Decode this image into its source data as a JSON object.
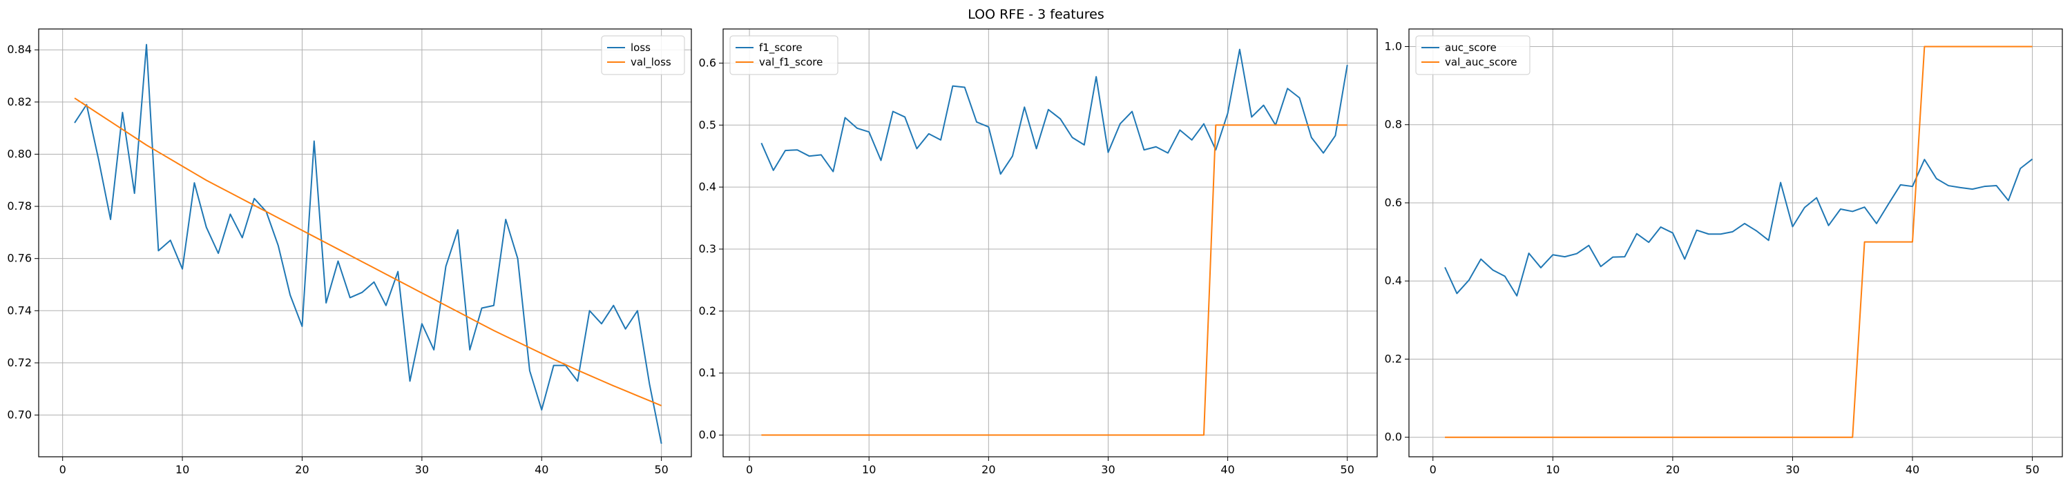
{
  "figure": {
    "suptitle": "LOO RFE - 3 features",
    "colors": {
      "series1": "#1f77b4",
      "series2": "#ff7f0e",
      "grid": "#b0b0b0",
      "axes": "#000000"
    }
  },
  "chart_data": [
    {
      "type": "line",
      "title": "",
      "xlabel": "",
      "ylabel": "",
      "xlim": [
        -2,
        52.5
      ],
      "ylim": [
        0.684,
        0.848
      ],
      "xticks": [
        0,
        10,
        20,
        30,
        40,
        50
      ],
      "xtick_labels": [
        "0",
        "10",
        "20",
        "30",
        "40",
        "50"
      ],
      "yticks": [
        0.7,
        0.72,
        0.74,
        0.76,
        0.78,
        0.8,
        0.82,
        0.84
      ],
      "ytick_labels": [
        "0.70",
        "0.72",
        "0.74",
        "0.76",
        "0.78",
        "0.80",
        "0.82",
        "0.84"
      ],
      "grid": true,
      "legend": "upper right",
      "x": [
        1,
        2,
        3,
        4,
        5,
        6,
        7,
        8,
        9,
        10,
        11,
        12,
        13,
        14,
        15,
        16,
        17,
        18,
        19,
        20,
        21,
        22,
        23,
        24,
        25,
        26,
        27,
        28,
        29,
        30,
        31,
        32,
        33,
        34,
        35,
        36,
        37,
        38,
        39,
        40,
        41,
        42,
        43,
        44,
        45,
        46,
        47,
        48,
        49,
        50
      ],
      "series": [
        {
          "name": "loss",
          "color": "#1f77b4",
          "values": [
            0.812,
            0.819,
            0.798,
            0.775,
            0.816,
            0.785,
            0.842,
            0.763,
            0.767,
            0.756,
            0.789,
            0.772,
            0.762,
            0.777,
            0.768,
            0.783,
            0.778,
            0.765,
            0.746,
            0.734,
            0.805,
            0.743,
            0.759,
            0.745,
            0.747,
            0.751,
            0.742,
            0.755,
            0.713,
            0.735,
            0.725,
            0.757,
            0.771,
            0.725,
            0.741,
            0.742,
            0.775,
            0.76,
            0.717,
            0.702,
            0.719,
            0.719,
            0.713,
            0.74,
            0.735,
            0.742,
            0.733,
            0.74,
            0.712,
            0.689
          ]
        },
        {
          "name": "val_loss",
          "color": "#ff7f0e",
          "values": [
            0.8215,
            0.8185,
            0.8155,
            0.8125,
            0.8095,
            0.8065,
            0.8035,
            0.8008,
            0.7981,
            0.7954,
            0.7927,
            0.79,
            0.7876,
            0.7852,
            0.7828,
            0.7804,
            0.778,
            0.7756,
            0.7732,
            0.7708,
            0.7684,
            0.766,
            0.7636,
            0.7612,
            0.7588,
            0.7564,
            0.754,
            0.7516,
            0.7492,
            0.7468,
            0.7444,
            0.742,
            0.7396,
            0.7372,
            0.7348,
            0.7324,
            0.7302,
            0.728,
            0.7258,
            0.7236,
            0.7214,
            0.7193,
            0.7172,
            0.7152,
            0.7132,
            0.7112,
            0.7093,
            0.7074,
            0.7055,
            0.7036
          ]
        }
      ]
    },
    {
      "type": "line",
      "title": "",
      "xlabel": "",
      "ylabel": "",
      "xlim": [
        -2.2,
        52.5
      ],
      "ylim": [
        -0.035,
        0.655
      ],
      "xticks": [
        0,
        10,
        20,
        30,
        40,
        50
      ],
      "xtick_labels": [
        "0",
        "10",
        "20",
        "30",
        "40",
        "50"
      ],
      "yticks": [
        0.0,
        0.1,
        0.2,
        0.3,
        0.4,
        0.5,
        0.6
      ],
      "ytick_labels": [
        "0.0",
        "0.1",
        "0.2",
        "0.3",
        "0.4",
        "0.5",
        "0.6"
      ],
      "grid": true,
      "legend": "upper left",
      "x": [
        1,
        2,
        3,
        4,
        5,
        6,
        7,
        8,
        9,
        10,
        11,
        12,
        13,
        14,
        15,
        16,
        17,
        18,
        19,
        20,
        21,
        22,
        23,
        24,
        25,
        26,
        27,
        28,
        29,
        30,
        31,
        32,
        33,
        34,
        35,
        36,
        37,
        38,
        39,
        40,
        41,
        42,
        43,
        44,
        45,
        46,
        47,
        48,
        49,
        50
      ],
      "series": [
        {
          "name": "f1_score",
          "color": "#1f77b4",
          "values": [
            0.471,
            0.427,
            0.459,
            0.46,
            0.45,
            0.452,
            0.425,
            0.512,
            0.495,
            0.489,
            0.443,
            0.522,
            0.513,
            0.462,
            0.486,
            0.476,
            0.563,
            0.561,
            0.505,
            0.497,
            0.421,
            0.45,
            0.529,
            0.462,
            0.525,
            0.51,
            0.48,
            0.468,
            0.578,
            0.456,
            0.502,
            0.522,
            0.46,
            0.465,
            0.455,
            0.492,
            0.476,
            0.502,
            0.46,
            0.519,
            0.622,
            0.513,
            0.532,
            0.5,
            0.559,
            0.544,
            0.48,
            0.455,
            0.483,
            0.597
          ]
        },
        {
          "name": "val_f1_score",
          "color": "#ff7f0e",
          "values": [
            0,
            0,
            0,
            0,
            0,
            0,
            0,
            0,
            0,
            0,
            0,
            0,
            0,
            0,
            0,
            0,
            0,
            0,
            0,
            0,
            0,
            0,
            0,
            0,
            0,
            0,
            0,
            0,
            0,
            0,
            0,
            0,
            0,
            0,
            0,
            0,
            0,
            0,
            0.5,
            0.5,
            0.5,
            0.5,
            0.5,
            0.5,
            0.5,
            0.5,
            0.5,
            0.5,
            0.5,
            0.5
          ]
        }
      ]
    },
    {
      "type": "line",
      "title": "",
      "xlabel": "",
      "ylabel": "",
      "xlim": [
        -2,
        52.5
      ],
      "ylim": [
        -0.05,
        1.045
      ],
      "xticks": [
        0,
        10,
        20,
        30,
        40,
        50
      ],
      "xtick_labels": [
        "0",
        "10",
        "20",
        "30",
        "40",
        "50"
      ],
      "yticks": [
        0.0,
        0.2,
        0.4,
        0.6,
        0.8,
        1.0
      ],
      "ytick_labels": [
        "0.0",
        "0.2",
        "0.4",
        "0.6",
        "0.8",
        "1.0"
      ],
      "grid": true,
      "legend": "upper left",
      "x": [
        1,
        2,
        3,
        4,
        5,
        6,
        7,
        8,
        9,
        10,
        11,
        12,
        13,
        14,
        15,
        16,
        17,
        18,
        19,
        20,
        21,
        22,
        23,
        24,
        25,
        26,
        27,
        28,
        29,
        30,
        31,
        32,
        33,
        34,
        35,
        36,
        37,
        38,
        39,
        40,
        41,
        42,
        43,
        44,
        45,
        46,
        47,
        48,
        49,
        50
      ],
      "series": [
        {
          "name": "auc_score",
          "color": "#1f77b4",
          "values": [
            0.435,
            0.368,
            0.402,
            0.456,
            0.428,
            0.412,
            0.362,
            0.471,
            0.434,
            0.467,
            0.462,
            0.47,
            0.491,
            0.437,
            0.461,
            0.462,
            0.521,
            0.499,
            0.538,
            0.523,
            0.456,
            0.53,
            0.52,
            0.52,
            0.526,
            0.547,
            0.528,
            0.504,
            0.652,
            0.539,
            0.588,
            0.613,
            0.542,
            0.584,
            0.578,
            0.589,
            0.547,
            0.597,
            0.646,
            0.642,
            0.711,
            0.662,
            0.644,
            0.639,
            0.635,
            0.642,
            0.644,
            0.606,
            0.688,
            0.712
          ]
        },
        {
          "name": "val_auc_score",
          "color": "#ff7f0e",
          "values": [
            0,
            0,
            0,
            0,
            0,
            0,
            0,
            0,
            0,
            0,
            0,
            0,
            0,
            0,
            0,
            0,
            0,
            0,
            0,
            0,
            0,
            0,
            0,
            0,
            0,
            0,
            0,
            0,
            0,
            0,
            0,
            0,
            0,
            0,
            0,
            0.5,
            0.5,
            0.5,
            0.5,
            0.5,
            1.0,
            1.0,
            1.0,
            1.0,
            1.0,
            1.0,
            1.0,
            1.0,
            1.0,
            1.0
          ]
        }
      ]
    }
  ]
}
